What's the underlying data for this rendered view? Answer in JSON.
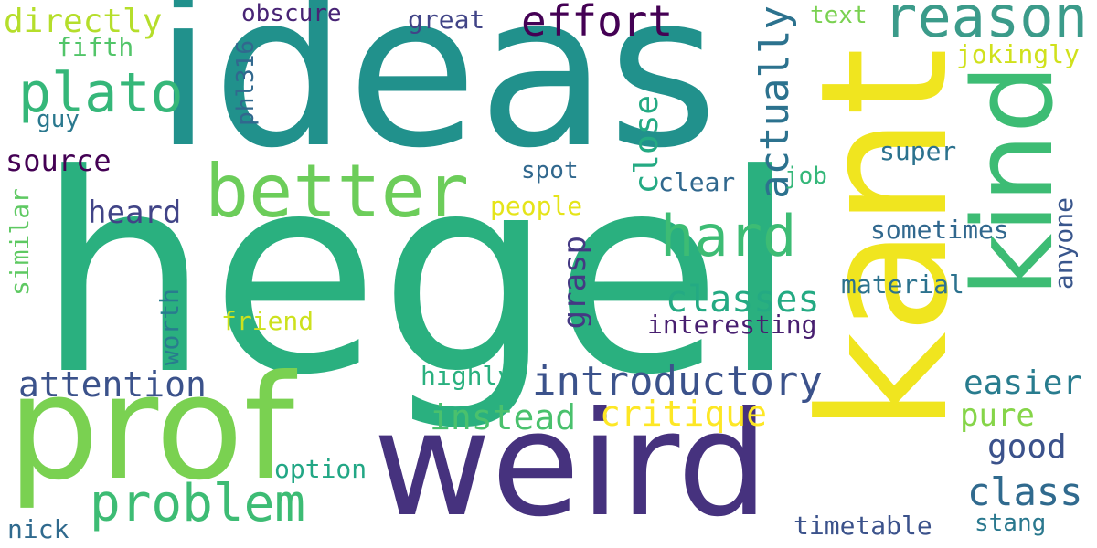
{
  "words": {
    "ideas": {
      "text": "ideas",
      "color": "#21918c"
    },
    "hegel": {
      "text": "hegel",
      "color": "#2ab07f"
    },
    "kant": {
      "text": "kant",
      "color": "#f0e51f"
    },
    "prof": {
      "text": "prof",
      "color": "#7ad151"
    },
    "weird": {
      "text": "weird",
      "color": "#46327e"
    },
    "kind": {
      "text": "kind",
      "color": "#3dbc74"
    },
    "better": {
      "text": "better",
      "color": "#6ccd5a"
    },
    "reason": {
      "text": "reason",
      "color": "#3b9b8a"
    },
    "plato": {
      "text": "plato",
      "color": "#35b779"
    },
    "hard": {
      "text": "hard",
      "color": "#3dbc74"
    },
    "effort": {
      "text": "effort",
      "color": "#440154"
    },
    "directly": {
      "text": "directly",
      "color": "#b5de2b"
    },
    "obscure": {
      "text": "obscure",
      "color": "#482475"
    },
    "great": {
      "text": "great",
      "color": "#414487"
    },
    "text": {
      "text": "text",
      "color": "#7ad151"
    },
    "fifth": {
      "text": "fifth",
      "color": "#52c569"
    },
    "guy": {
      "text": "guy",
      "color": "#2a788e"
    },
    "phl316": {
      "text": "phl316",
      "color": "#31688e"
    },
    "jokingly": {
      "text": "jokingly",
      "color": "#d0e11c"
    },
    "actually": {
      "text": "actually",
      "color": "#2c728e"
    },
    "close": {
      "text": "close",
      "color": "#24aa83"
    },
    "source": {
      "text": "source",
      "color": "#440154"
    },
    "spot": {
      "text": "spot",
      "color": "#31688e"
    },
    "job": {
      "text": "job",
      "color": "#35b779"
    },
    "clear": {
      "text": "clear",
      "color": "#31688e"
    },
    "super": {
      "text": "super",
      "color": "#2c728e"
    },
    "similar": {
      "text": "similar",
      "color": "#5ec962"
    },
    "heard": {
      "text": "heard",
      "color": "#414487"
    },
    "people": {
      "text": "people",
      "color": "#e5e419"
    },
    "grasp": {
      "text": "grasp",
      "color": "#443983"
    },
    "sometimes": {
      "text": "sometimes",
      "color": "#31688e"
    },
    "anyone": {
      "text": "anyone",
      "color": "#39568c"
    },
    "classes": {
      "text": "classes",
      "color": "#24aa83"
    },
    "material": {
      "text": "material",
      "color": "#2c728e"
    },
    "worth": {
      "text": "worth",
      "color": "#287c8e"
    },
    "friend": {
      "text": "friend",
      "color": "#cde11d"
    },
    "interesting": {
      "text": "interesting",
      "color": "#481f70"
    },
    "attention": {
      "text": "attention",
      "color": "#3b528b"
    },
    "introductory": {
      "text": "introductory",
      "color": "#3b528b"
    },
    "highly": {
      "text": "highly",
      "color": "#2ab07f"
    },
    "easier": {
      "text": "easier",
      "color": "#287c8e"
    },
    "critique": {
      "text": "critique",
      "color": "#fde725"
    },
    "instead": {
      "text": "instead",
      "color": "#4ac16d"
    },
    "pure": {
      "text": "pure",
      "color": "#86d549"
    },
    "good": {
      "text": "good",
      "color": "#3b528b"
    },
    "problem": {
      "text": "problem",
      "color": "#3dbc74"
    },
    "option": {
      "text": "option",
      "color": "#22a785"
    },
    "class": {
      "text": "class",
      "color": "#306a8e"
    },
    "nick": {
      "text": "nick",
      "color": "#306a8e"
    },
    "timetable": {
      "text": "timetable",
      "color": "#3b528b"
    },
    "stang": {
      "text": "stang",
      "color": "#2a788e"
    }
  }
}
